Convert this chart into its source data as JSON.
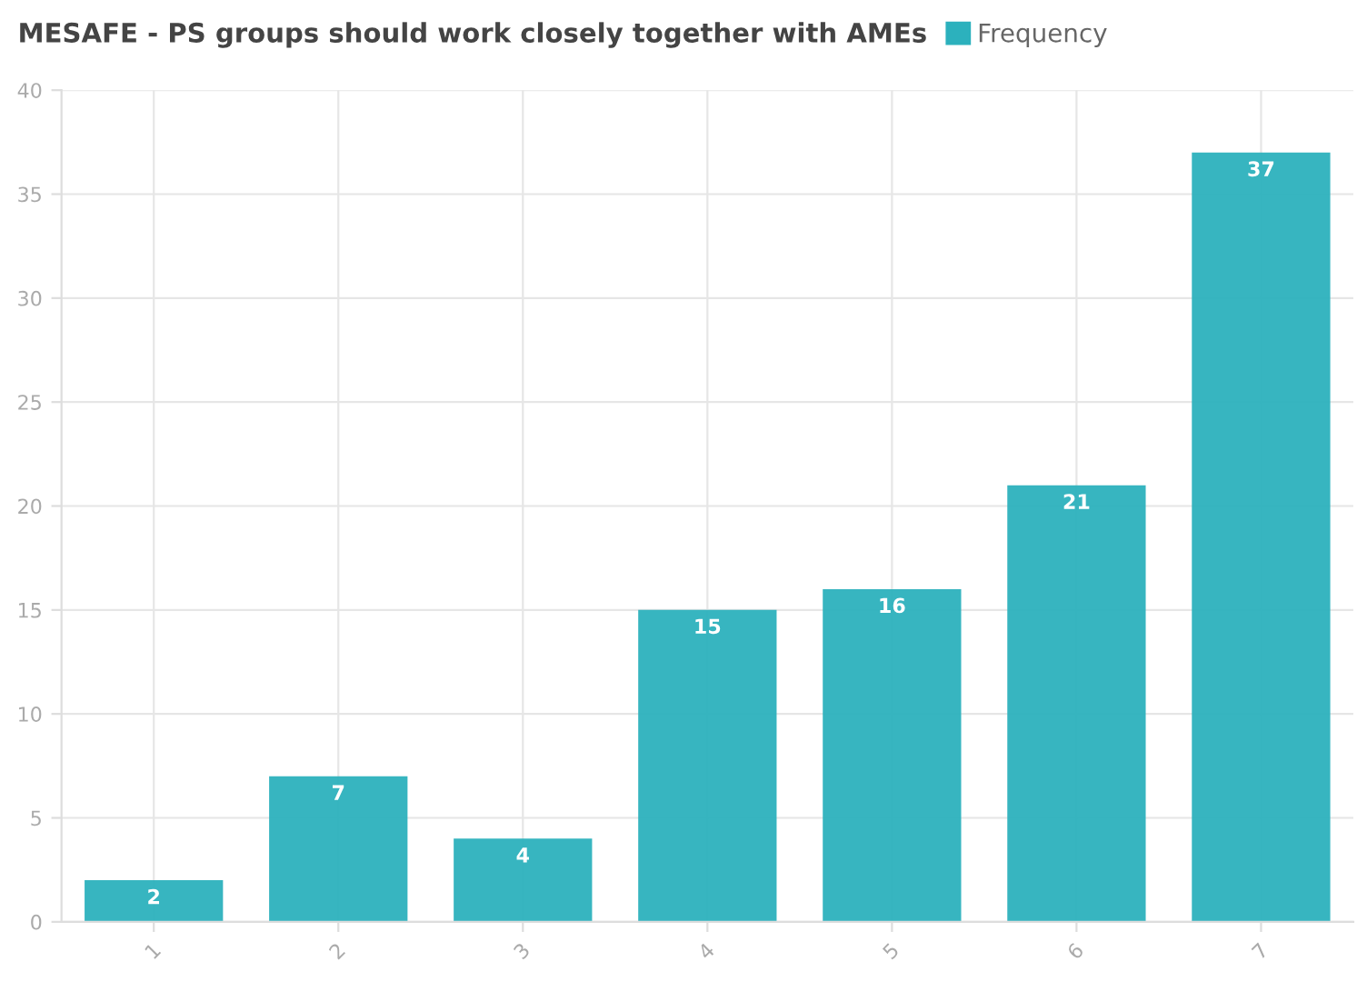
{
  "chart_data": {
    "type": "bar",
    "title": "MESAFE - PS groups should work closely together with AMEs",
    "categories": [
      "1",
      "2",
      "3",
      "4",
      "5",
      "6",
      "7"
    ],
    "series": [
      {
        "name": "Frequency",
        "color": "#2cb1bd",
        "values": [
          2,
          7,
          4,
          15,
          16,
          21,
          37
        ]
      }
    ],
    "ylim": [
      0,
      40
    ],
    "yticks": [
      0,
      5,
      10,
      15,
      20,
      25,
      30,
      35,
      40
    ],
    "grid": true,
    "legend": "top",
    "data_labels": true
  }
}
